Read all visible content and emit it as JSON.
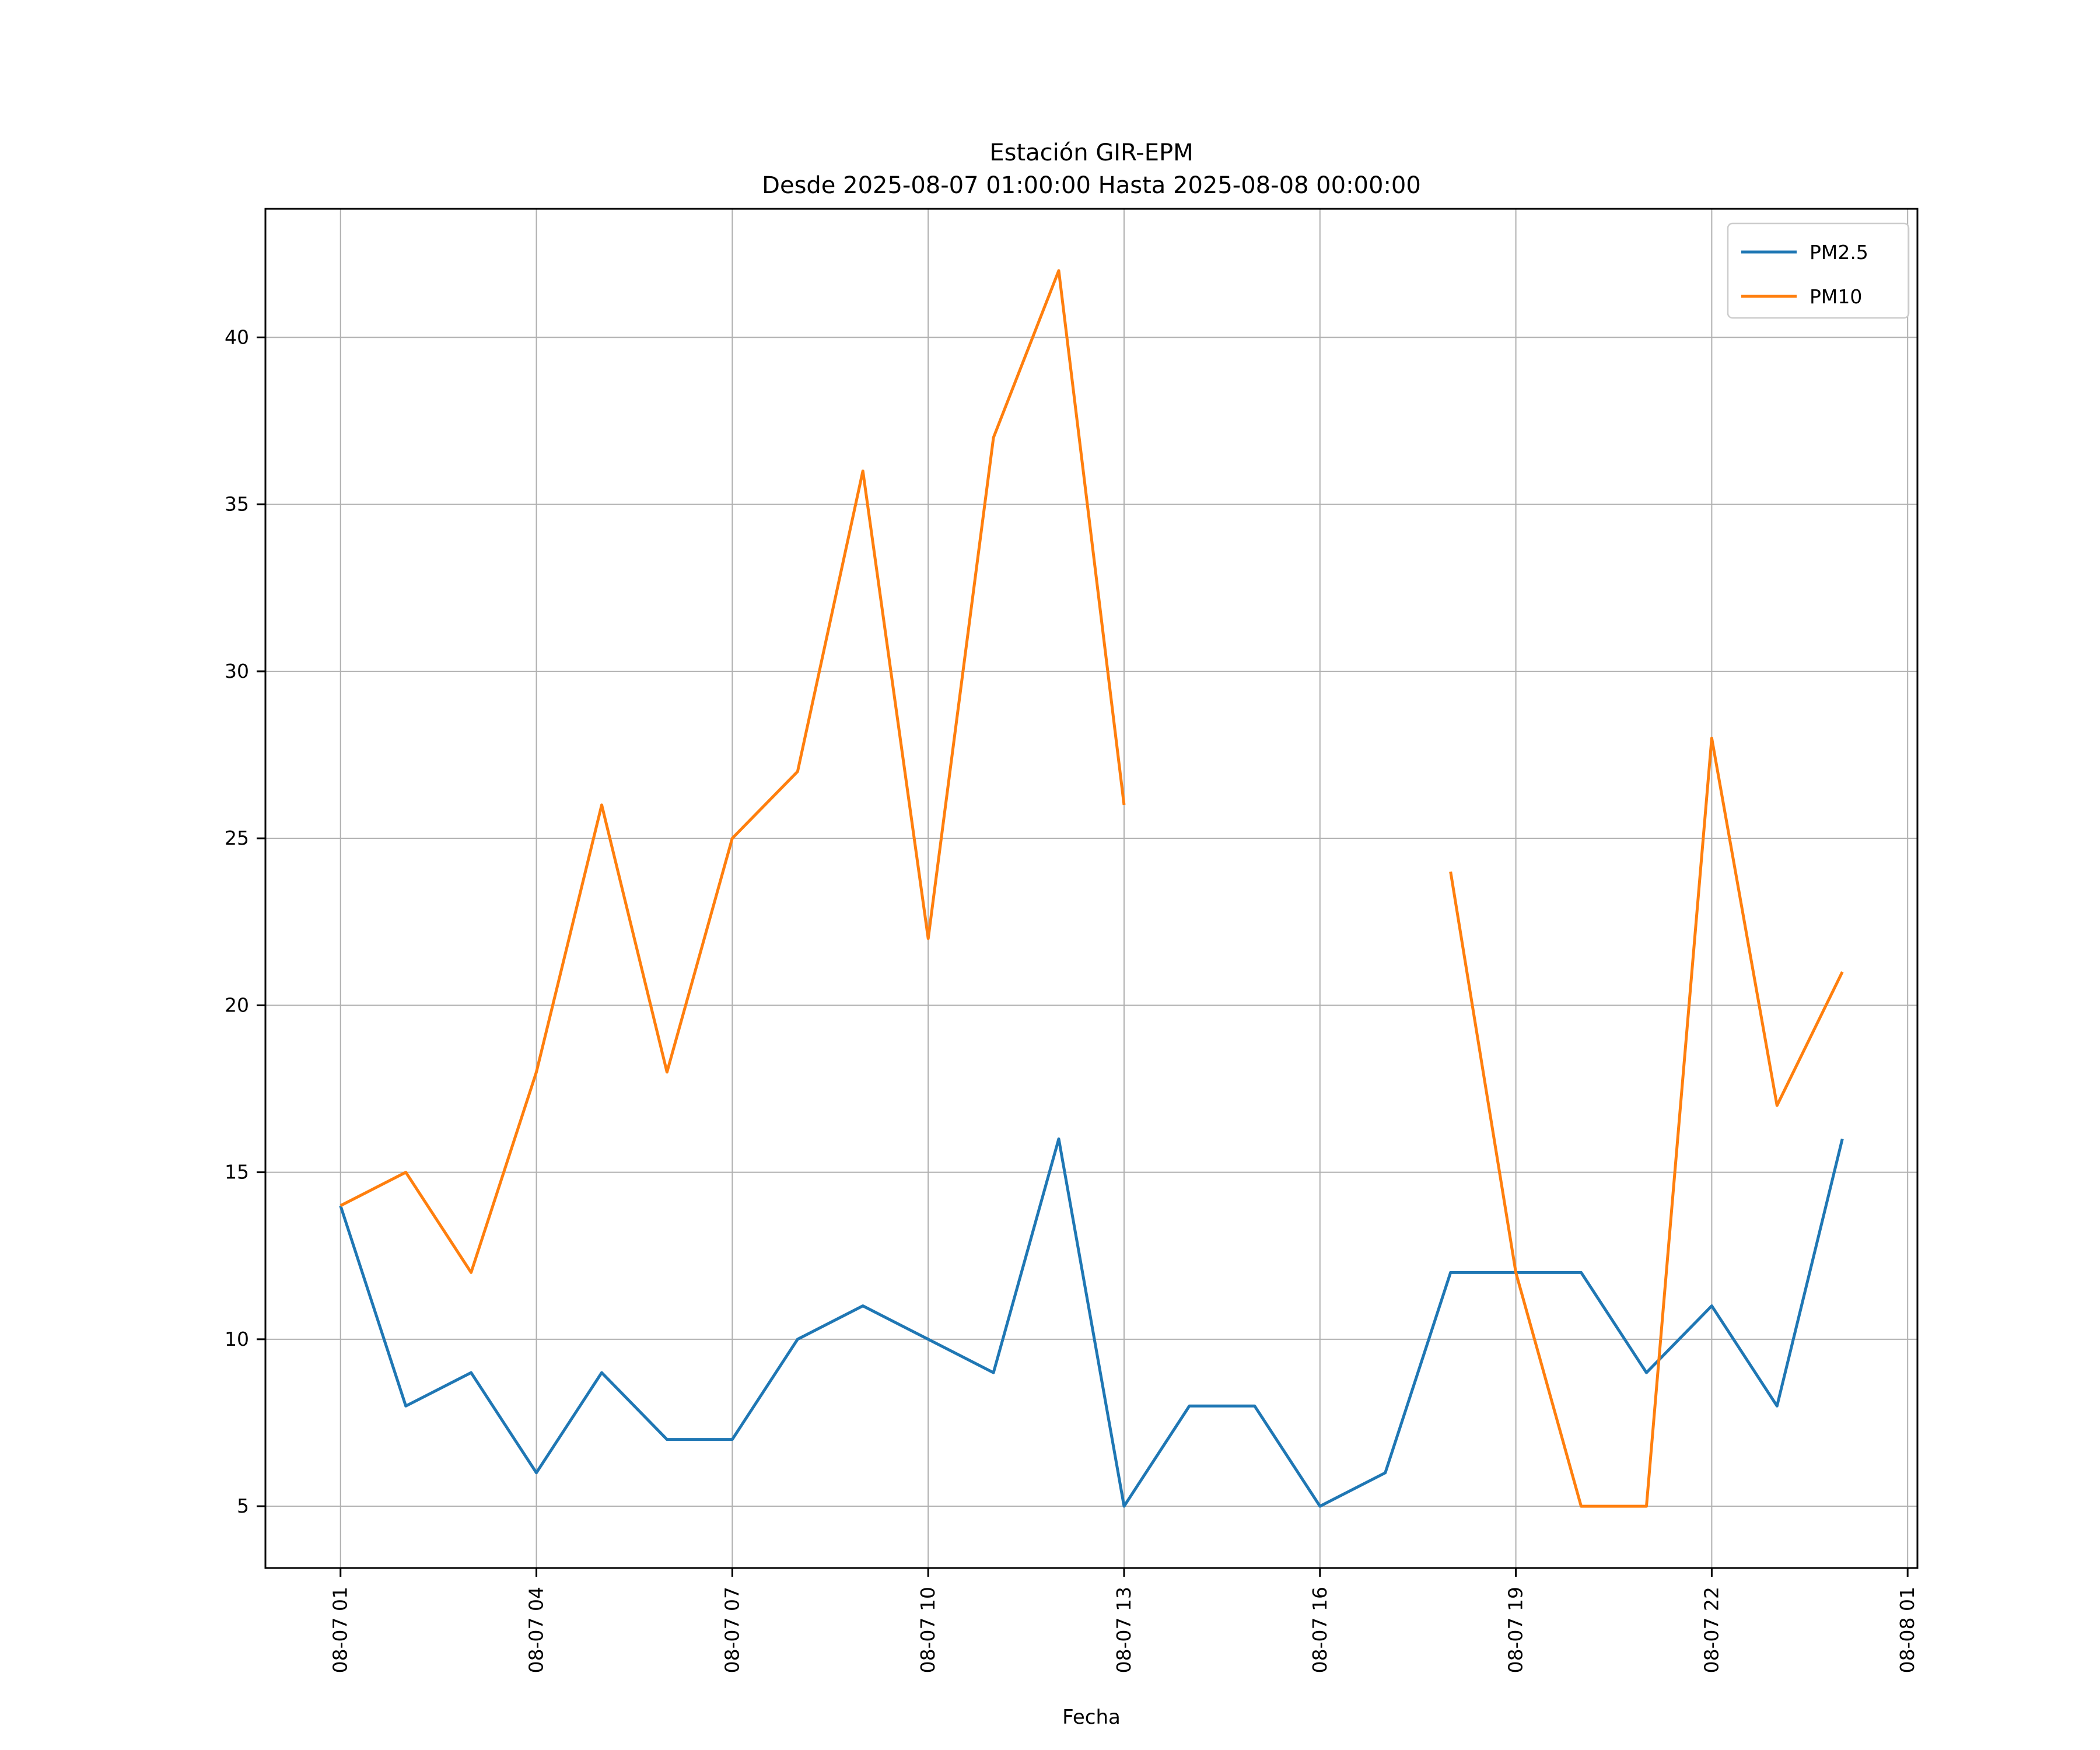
{
  "chart_data": {
    "type": "line",
    "title": "Estación GIR-EPM",
    "subtitle": "Desde 2025-08-07 01:00:00 Hasta 2025-08-08 00:00:00",
    "xlabel": "Fecha",
    "ylabel": "",
    "x": [
      1,
      2,
      3,
      4,
      5,
      6,
      7,
      8,
      9,
      10,
      11,
      12,
      13,
      14,
      15,
      16,
      17,
      18,
      19,
      20,
      21,
      22,
      23,
      24
    ],
    "series": [
      {
        "name": "PM2.5",
        "color": "#1f77b4",
        "values": [
          14,
          8,
          9,
          6,
          9,
          7,
          7,
          10,
          11,
          10,
          9,
          16,
          5,
          8,
          8,
          5,
          6,
          12,
          12,
          12,
          9,
          11,
          8,
          16
        ]
      },
      {
        "name": "PM10",
        "color": "#ff7f0e",
        "values": [
          14,
          15,
          12,
          18,
          26,
          18,
          25,
          27,
          36,
          22,
          37,
          42,
          26,
          null,
          null,
          null,
          null,
          24,
          12,
          5,
          5,
          28,
          17,
          21
        ]
      }
    ],
    "xticks": {
      "positions": [
        1,
        4,
        7,
        10,
        13,
        16,
        19,
        22,
        25
      ],
      "labels": [
        "08-07 01",
        "08-07 04",
        "08-07 07",
        "08-07 10",
        "08-07 13",
        "08-07 16",
        "08-07 19",
        "08-07 22",
        "08-08 01"
      ]
    },
    "yticks": [
      5,
      10,
      15,
      20,
      25,
      30,
      35,
      40
    ],
    "xlim": [
      -0.15,
      25.15
    ],
    "ylim": [
      3.15,
      43.85
    ],
    "grid": true,
    "grid_color": "#b0b0b0",
    "line_width": 5,
    "legend_position": "upper right"
  }
}
